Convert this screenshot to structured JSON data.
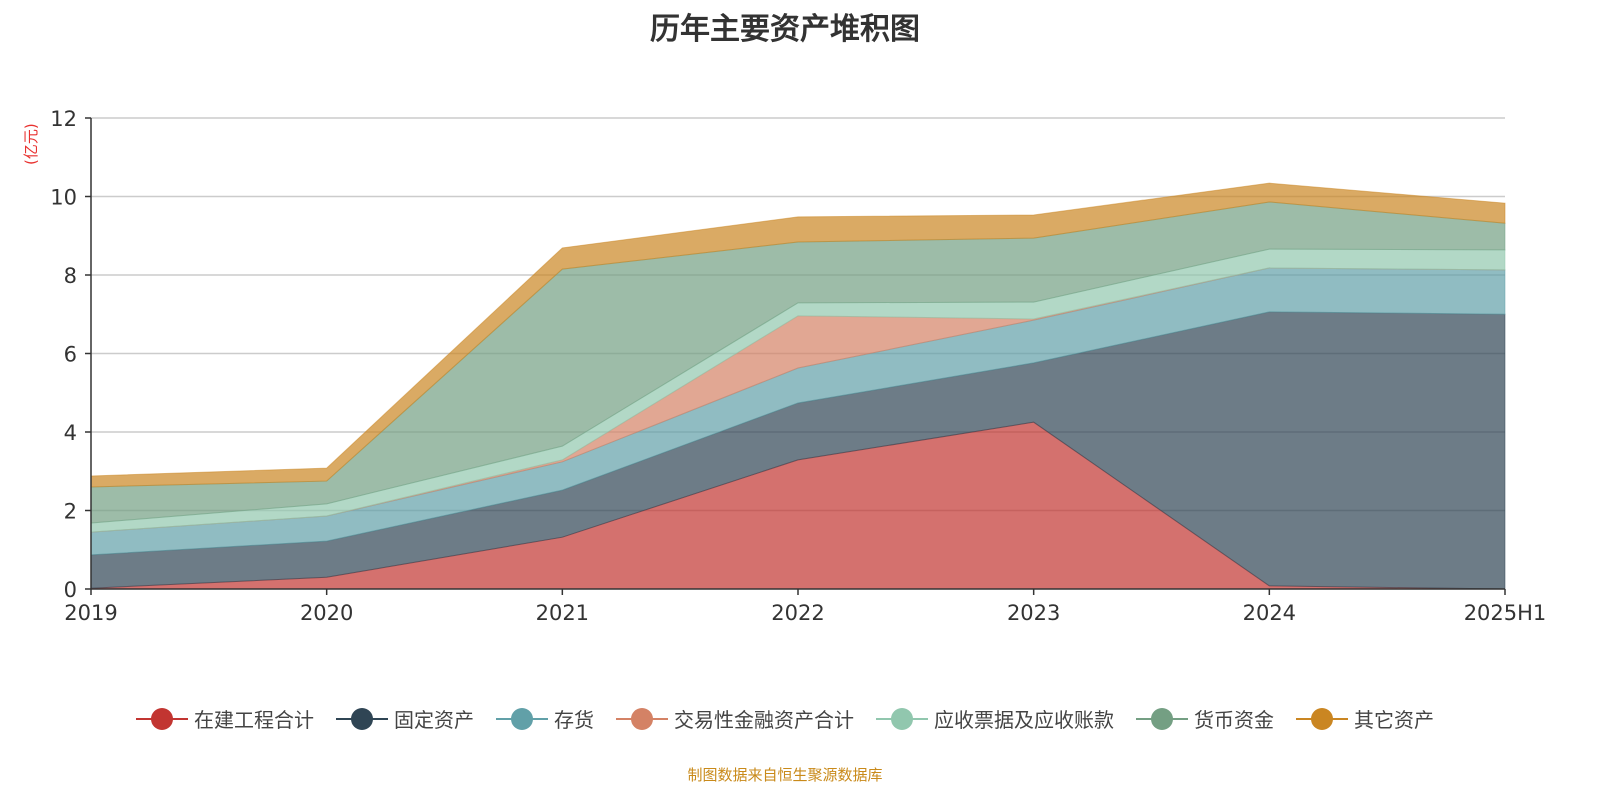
{
  "chart_data": {
    "type": "area",
    "stacked": true,
    "title": "历年主要资产堆积图",
    "ylabel": "(亿元)",
    "xlabel": "",
    "ylim": [
      0,
      12
    ],
    "yticks": [
      0,
      2,
      4,
      6,
      8,
      10,
      12
    ],
    "grid": true,
    "legend_position": "bottom",
    "categories": [
      "2019",
      "2020",
      "2021",
      "2022",
      "2023",
      "2024",
      "2025H1"
    ],
    "series": [
      {
        "name": "在建工程合计",
        "color": "#c23531",
        "values": [
          0.02,
          0.3,
          1.32,
          3.29,
          4.25,
          0.08,
          0.0
        ]
      },
      {
        "name": "固定资产",
        "color": "#2f4554",
        "values": [
          0.85,
          0.92,
          1.2,
          1.45,
          1.51,
          6.98,
          7.0
        ]
      },
      {
        "name": "存货",
        "color": "#61a0a8",
        "values": [
          0.58,
          0.64,
          0.72,
          0.89,
          1.09,
          1.12,
          1.13
        ]
      },
      {
        "name": "交易性金融资产合计",
        "color": "#d48265",
        "values": [
          0,
          0,
          0.05,
          1.33,
          0.03,
          0,
          0
        ]
      },
      {
        "name": "应收票据及应收账款",
        "color": "#91c7ae",
        "values": [
          0.23,
          0.31,
          0.35,
          0.33,
          0.43,
          0.48,
          0.51
        ]
      },
      {
        "name": "货币资金",
        "color": "#749f83",
        "values": [
          0.92,
          0.58,
          4.51,
          1.55,
          1.63,
          1.2,
          0.68
        ]
      },
      {
        "name": "其它资产",
        "color": "#ca8622",
        "values": [
          0.28,
          0.33,
          0.54,
          0.64,
          0.59,
          0.48,
          0.51
        ]
      }
    ]
  },
  "source": "制图数据来自恒生聚源数据库"
}
